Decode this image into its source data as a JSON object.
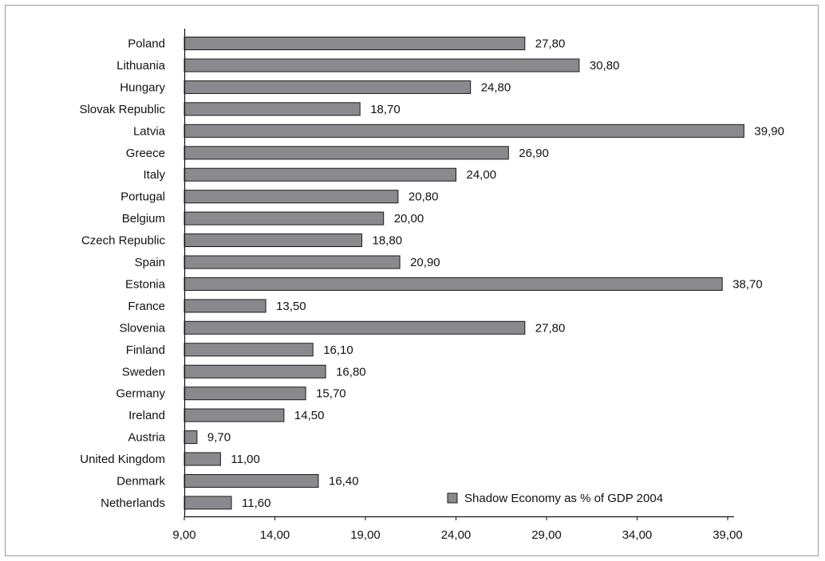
{
  "chart_data": {
    "type": "bar",
    "orientation": "horizontal",
    "categories": [
      "Poland",
      "Lithuania",
      "Hungary",
      "Slovak Republic",
      "Latvia",
      "Greece",
      "Italy",
      "Portugal",
      "Belgium",
      "Czech Republic",
      "Spain",
      "Estonia",
      "France",
      "Slovenia",
      "Finland",
      "Sweden",
      "Germany",
      "Ireland",
      "Austria",
      "United Kingdom",
      "Denmark",
      "Netherlands"
    ],
    "values": [
      27.8,
      30.8,
      24.8,
      18.7,
      39.9,
      26.9,
      24.0,
      20.8,
      20.0,
      18.8,
      20.9,
      38.7,
      13.5,
      27.8,
      16.1,
      16.8,
      15.7,
      14.5,
      9.7,
      11.0,
      16.4,
      11.6
    ],
    "value_labels": [
      "27,80",
      "30,80",
      "24,80",
      "18,70",
      "39,90",
      "26,90",
      "24,00",
      "20,80",
      "20,00",
      "18,80",
      "20,90",
      "38,70",
      "13,50",
      "27,80",
      "16,10",
      "16,80",
      "15,70",
      "14,50",
      "9,70",
      "11,00",
      "16,40",
      "11,60"
    ],
    "series": [
      {
        "name": "Shadow Economy as % of GDP 2004"
      }
    ],
    "xlim": [
      9,
      39
    ],
    "xticks": [
      9,
      14,
      19,
      24,
      29,
      34,
      39
    ],
    "xtick_labels": [
      "9,00",
      "14,00",
      "19,00",
      "24,00",
      "29,00",
      "34,00",
      "39,00"
    ],
    "grid": false,
    "legend_position": "bottom-right",
    "bar_color": "#8a8a8e",
    "bar_edge_color": "#1a1a1a"
  }
}
